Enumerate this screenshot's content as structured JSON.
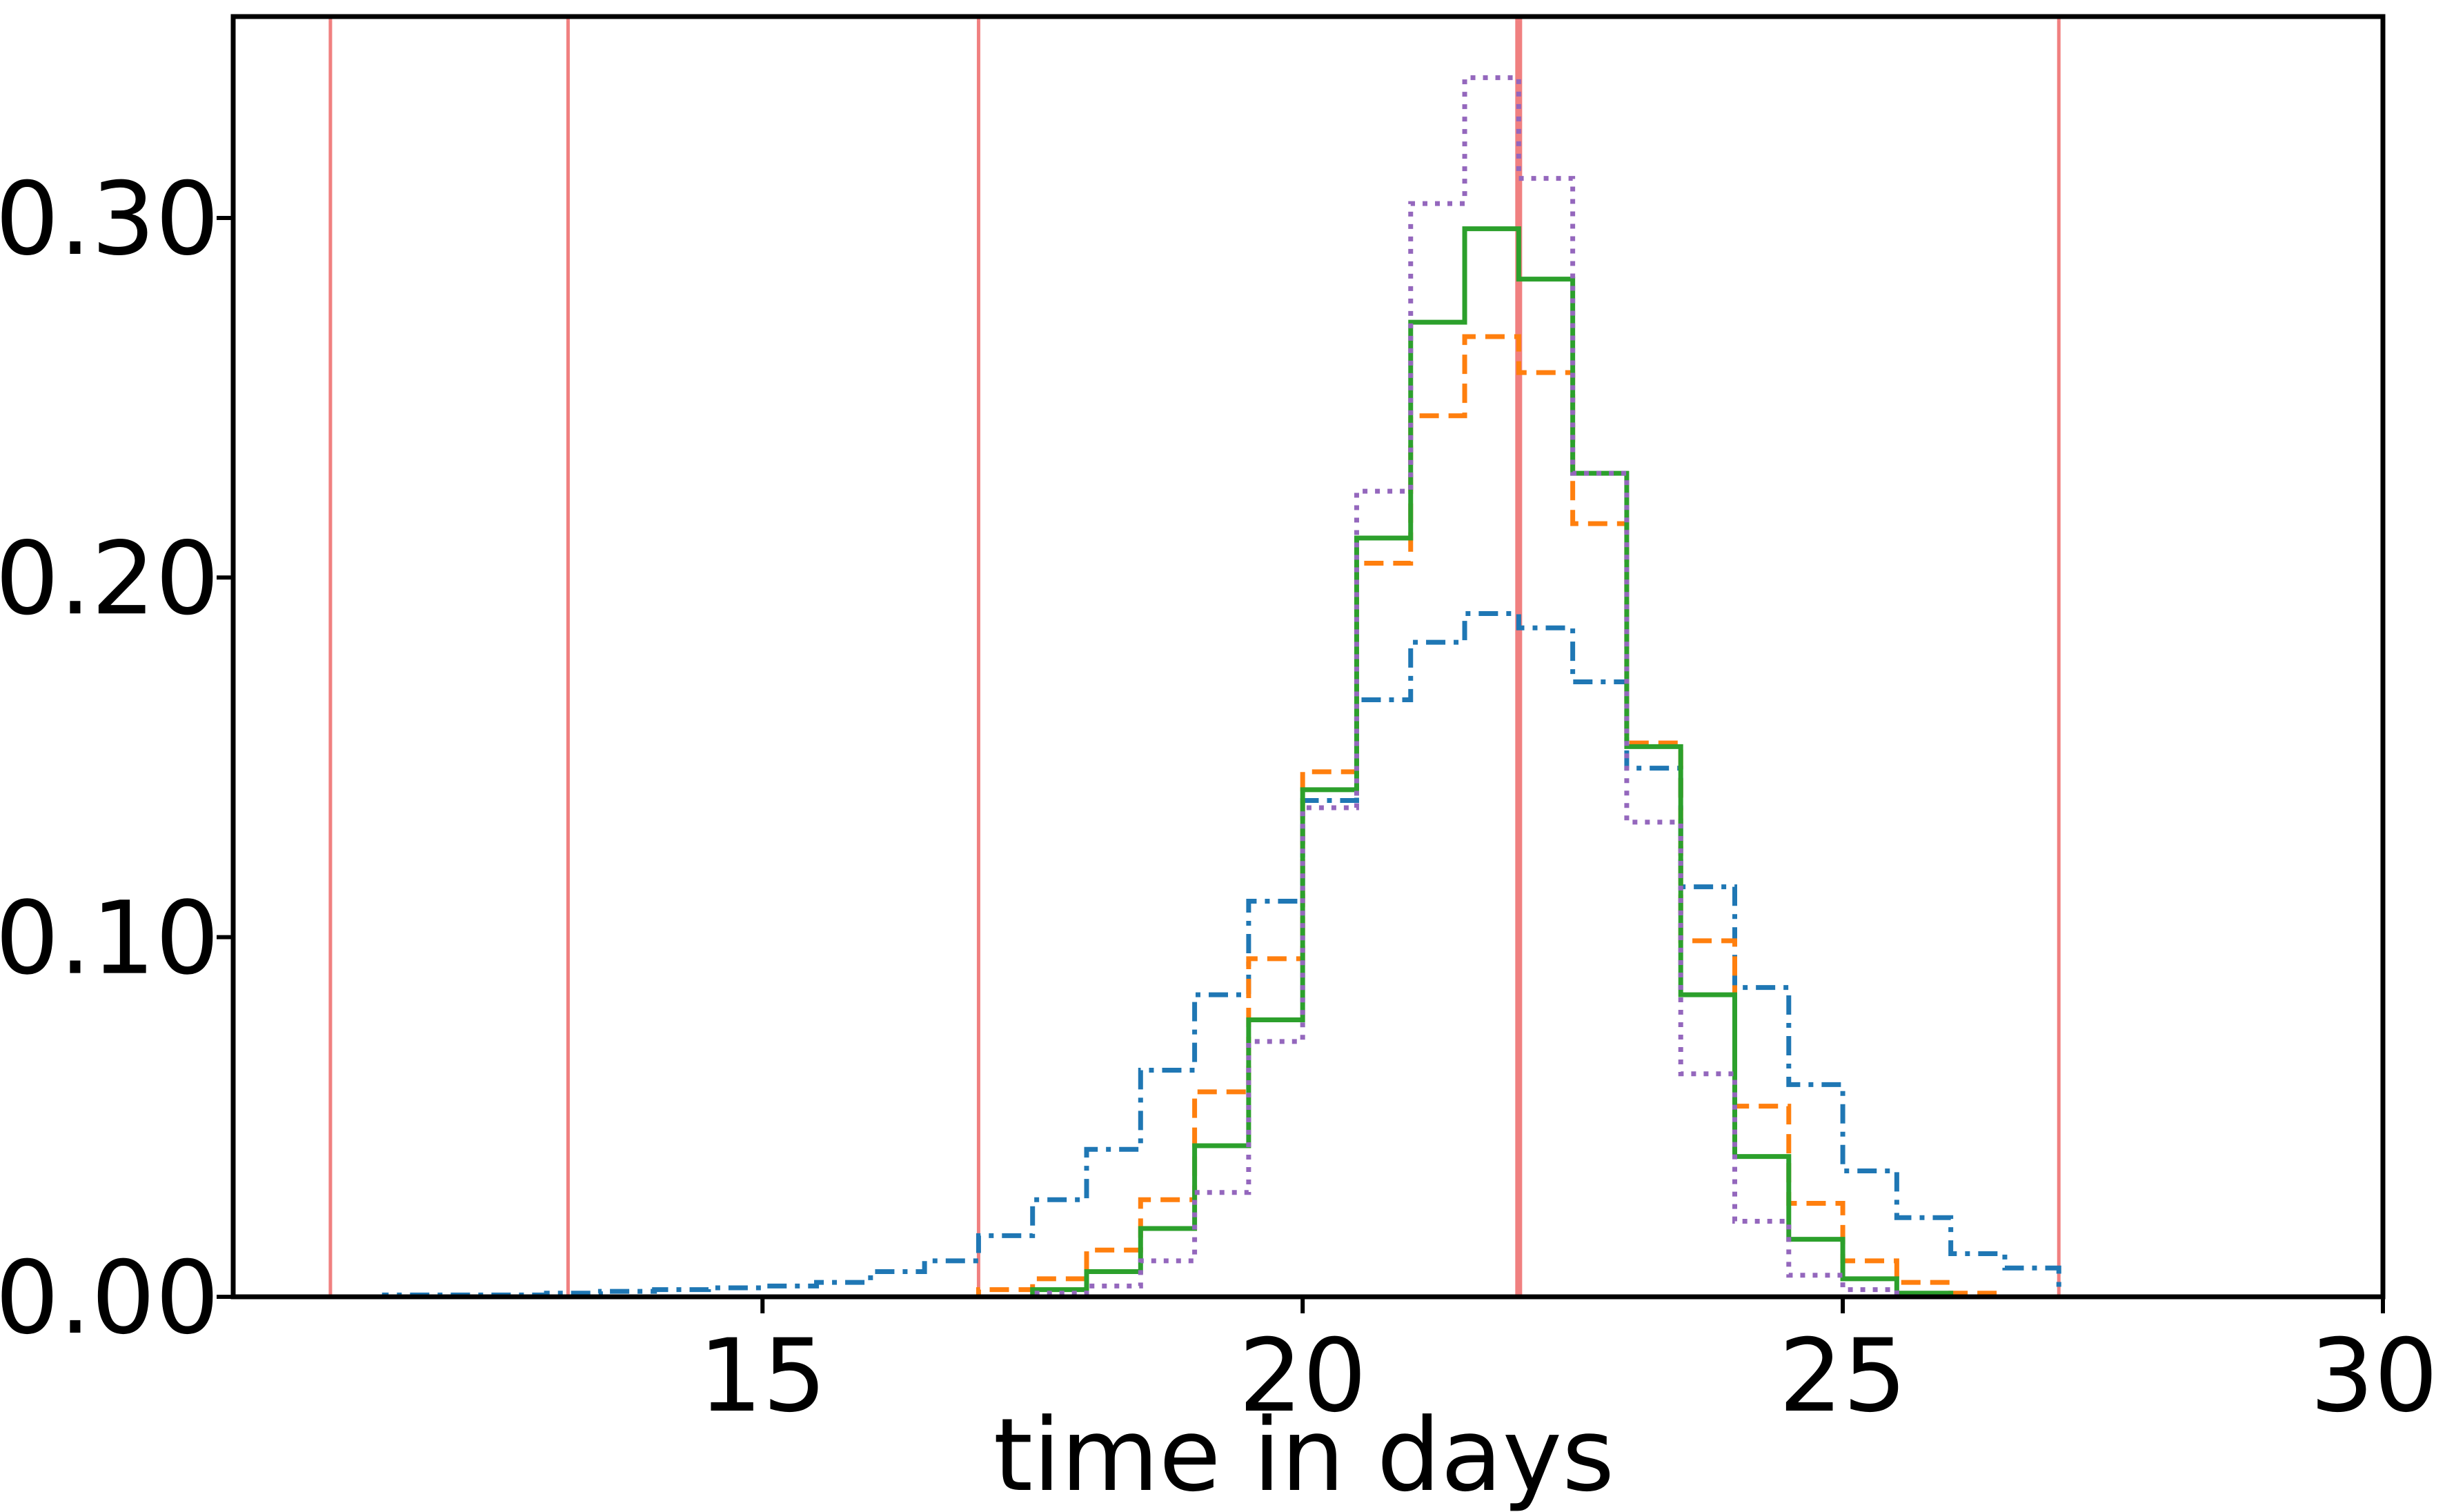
{
  "chart_data": {
    "type": "step histogram",
    "xlabel": "time in days",
    "ylabel": "",
    "xlim": [
      10.1,
      30
    ],
    "ylim": [
      0,
      0.356
    ],
    "grid": false,
    "x_ticks": [
      15,
      20,
      25,
      30
    ],
    "x_tick_labels": [
      "15",
      "20",
      "25",
      "30"
    ],
    "y_ticks": [
      0.0,
      0.1,
      0.2,
      0.3
    ],
    "y_tick_labels": [
      "0.00",
      "0.10",
      "0.20",
      "0.30"
    ],
    "bin_edges": [
      11.0,
      11.5,
      12.0,
      12.5,
      13.0,
      13.5,
      14.0,
      14.5,
      15.0,
      15.5,
      16.0,
      16.5,
      17.0,
      17.5,
      18.0,
      18.5,
      19.0,
      19.5,
      20.0,
      20.5,
      21.0,
      21.5,
      22.0,
      22.5,
      23.0,
      23.5,
      24.0,
      24.5,
      25.0,
      25.5,
      26.0,
      26.5,
      27.0
    ],
    "series": [
      {
        "color": "#1f77b4",
        "linestyle": "dashdot",
        "values": [
          0.0,
          0.0005,
          0.0005,
          0.0005,
          0.001,
          0.0015,
          0.002,
          0.0025,
          0.003,
          0.004,
          0.007,
          0.01,
          0.017,
          0.027,
          0.041,
          0.063,
          0.084,
          0.11,
          0.138,
          0.166,
          0.182,
          0.19,
          0.186,
          0.171,
          0.147,
          0.114,
          0.086,
          0.059,
          0.035,
          0.022,
          0.012,
          0.008
        ]
      },
      {
        "color": "#ff7f0e",
        "linestyle": "dashed",
        "values": [
          0,
          0,
          0,
          0,
          0,
          0,
          0,
          0,
          0,
          0,
          0,
          0,
          0.002,
          0.005,
          0.013,
          0.027,
          0.057,
          0.094,
          0.146,
          0.204,
          0.245,
          0.267,
          0.257,
          0.215,
          0.154,
          0.099,
          0.053,
          0.026,
          0.01,
          0.004,
          0.001,
          0
        ]
      },
      {
        "color": "#2ca02c",
        "linestyle": "solid",
        "values": [
          0,
          0,
          0,
          0,
          0,
          0,
          0,
          0,
          0,
          0,
          0,
          0,
          0,
          0.002,
          0.007,
          0.019,
          0.042,
          0.077,
          0.141,
          0.211,
          0.271,
          0.297,
          0.283,
          0.229,
          0.153,
          0.084,
          0.039,
          0.016,
          0.005,
          0.001,
          0,
          0
        ]
      },
      {
        "color": "#9467bd",
        "linestyle": "dotted",
        "values": [
          0,
          0,
          0,
          0,
          0,
          0,
          0,
          0,
          0,
          0,
          0,
          0,
          0,
          0.001,
          0.003,
          0.01,
          0.029,
          0.071,
          0.136,
          0.224,
          0.304,
          0.339,
          0.311,
          0.229,
          0.132,
          0.062,
          0.021,
          0.006,
          0.002,
          0,
          0,
          0
        ]
      }
    ],
    "vertical_lines": [
      {
        "x": 11.0,
        "color": "#f08080",
        "weight": "thin"
      },
      {
        "x": 13.2,
        "color": "#f08080",
        "weight": "thin"
      },
      {
        "x": 17.0,
        "color": "#f08080",
        "weight": "thin"
      },
      {
        "x": 22.0,
        "color": "#f08080",
        "weight": "thick"
      },
      {
        "x": 27.0,
        "color": "#f08080",
        "weight": "thin"
      }
    ]
  }
}
